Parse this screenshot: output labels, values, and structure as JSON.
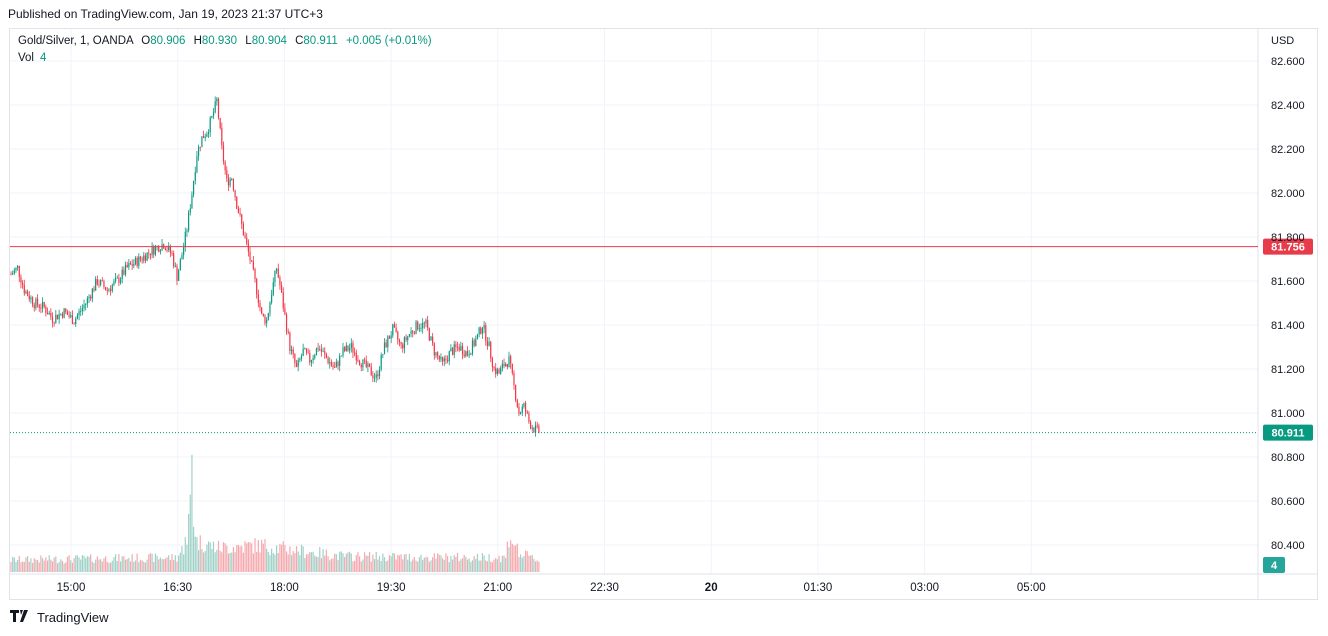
{
  "published": "Published on TradingView.com, Jan 19, 2023 21:37 UTC+3",
  "legend": {
    "symbol": "Gold/Silver, 1, OANDA",
    "o_label": "O",
    "o_value": "80.906",
    "h_label": "H",
    "h_value": "80.930",
    "l_label": "L",
    "l_value": "80.904",
    "c_label": "C",
    "c_value": "80.911",
    "change": "+0.005 (+0.01%)",
    "vol_label": "Vol",
    "vol_value": "4"
  },
  "footer": {
    "brand": "TradingView",
    "logo": "tradingview-logo-icon"
  },
  "colors": {
    "up": "#089981",
    "down": "#f23645",
    "vol_up": "#9fd1c8",
    "vol_down": "#f5a9ae",
    "alert_line": "#e83b4a",
    "grid": "#f0f3fa"
  },
  "chart_data": {
    "type": "candlestick",
    "currency": "USD",
    "y_ticks": [
      "82.600",
      "82.400",
      "82.200",
      "82.000",
      "81.800",
      "81.600",
      "81.400",
      "81.200",
      "81.000",
      "80.800",
      "80.600",
      "80.400"
    ],
    "ylim": [
      80.36,
      82.72
    ],
    "x_ticks": [
      "15:00",
      "16:30",
      "18:00",
      "19:30",
      "21:00",
      "22:30",
      "20",
      "01:30",
      "03:00",
      "05:00"
    ],
    "x_ticks_bold": [
      "20"
    ],
    "horizontal_line": {
      "value": 81.756,
      "label": "81.756"
    },
    "last_price": {
      "value": 80.911,
      "label": "80.911"
    },
    "volume_label": "4",
    "grid": true,
    "price_anchors": [
      [
        0,
        81.63
      ],
      [
        4,
        81.66
      ],
      [
        8,
        81.56
      ],
      [
        14,
        81.5
      ],
      [
        20,
        81.48
      ],
      [
        25,
        81.43
      ],
      [
        32,
        81.46
      ],
      [
        38,
        81.42
      ],
      [
        45,
        81.5
      ],
      [
        52,
        81.6
      ],
      [
        58,
        81.56
      ],
      [
        64,
        81.6
      ],
      [
        70,
        81.66
      ],
      [
        78,
        81.7
      ],
      [
        85,
        81.74
      ],
      [
        92,
        81.77
      ],
      [
        97,
        81.72
      ],
      [
        100,
        81.62
      ],
      [
        103,
        81.72
      ],
      [
        106,
        81.84
      ],
      [
        109,
        82.0
      ],
      [
        112,
        82.18
      ],
      [
        115,
        82.25
      ],
      [
        118,
        82.28
      ],
      [
        121,
        82.34
      ],
      [
        124,
        82.42
      ],
      [
        127,
        82.2
      ],
      [
        130,
        82.05
      ],
      [
        133,
        82.07
      ],
      [
        136,
        81.95
      ],
      [
        140,
        81.82
      ],
      [
        144,
        81.7
      ],
      [
        148,
        81.56
      ],
      [
        151,
        81.44
      ],
      [
        154,
        81.42
      ],
      [
        157,
        81.55
      ],
      [
        160,
        81.66
      ],
      [
        162,
        81.58
      ],
      [
        165,
        81.44
      ],
      [
        168,
        81.3
      ],
      [
        172,
        81.2
      ],
      [
        176,
        81.28
      ],
      [
        180,
        81.24
      ],
      [
        185,
        81.3
      ],
      [
        190,
        81.25
      ],
      [
        195,
        81.2
      ],
      [
        200,
        81.28
      ],
      [
        205,
        81.3
      ],
      [
        210,
        81.24
      ],
      [
        215,
        81.2
      ],
      [
        220,
        81.16
      ],
      [
        225,
        81.3
      ],
      [
        230,
        81.38
      ],
      [
        235,
        81.3
      ],
      [
        240,
        81.36
      ],
      [
        245,
        81.4
      ],
      [
        250,
        81.4
      ],
      [
        255,
        81.28
      ],
      [
        260,
        81.22
      ],
      [
        265,
        81.28
      ],
      [
        270,
        81.3
      ],
      [
        275,
        81.27
      ],
      [
        280,
        81.33
      ],
      [
        284,
        81.4
      ],
      [
        288,
        81.3
      ],
      [
        291,
        81.2
      ],
      [
        294,
        81.18
      ],
      [
        297,
        81.22
      ],
      [
        300,
        81.24
      ],
      [
        303,
        81.12
      ],
      [
        306,
        81.0
      ],
      [
        309,
        81.03
      ],
      [
        312,
        80.96
      ],
      [
        315,
        80.93
      ],
      [
        318,
        80.911
      ]
    ],
    "volume_profile": [
      [
        0,
        0.1
      ],
      [
        100,
        0.12
      ],
      [
        104,
        0.2
      ],
      [
        105,
        0.35
      ],
      [
        106,
        0.2
      ],
      [
        108,
        0.6
      ],
      [
        109,
        1.0
      ],
      [
        110,
        0.45
      ],
      [
        112,
        0.25
      ],
      [
        125,
        0.2
      ],
      [
        150,
        0.22
      ],
      [
        160,
        0.2
      ],
      [
        200,
        0.13
      ],
      [
        250,
        0.12
      ],
      [
        298,
        0.12
      ],
      [
        300,
        0.3
      ],
      [
        303,
        0.25
      ],
      [
        306,
        0.15
      ],
      [
        318,
        0.1
      ]
    ]
  }
}
